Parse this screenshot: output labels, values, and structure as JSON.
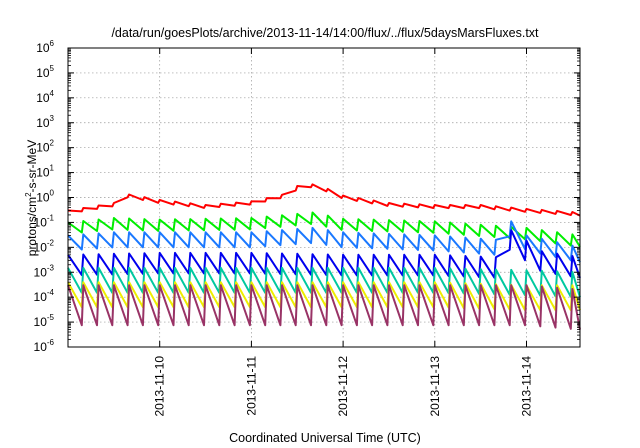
{
  "chart_data": {
    "type": "line",
    "title": "/data/run/goesPlots/archive/2013-11-14/14:00/flux/../flux/5daysMarsFluxes.txt",
    "xlabel": "Coordinated Universal Time (UTC)",
    "ylabel": {
      "base": "protons/cm",
      "sup": "2",
      "rest": "-s-sr-MeV"
    },
    "yscale": "log",
    "ylim": [
      1e-06,
      1000000.0
    ],
    "xlim": [
      "2013-11-09T00:00",
      "2013-11-14T14:00"
    ],
    "grid": true,
    "legend": "none",
    "y_ticks": [
      {
        "v": 1000000.0,
        "base": "10",
        "exp": "6"
      },
      {
        "v": 100000.0,
        "base": "10",
        "exp": "5"
      },
      {
        "v": 10000.0,
        "base": "10",
        "exp": "4"
      },
      {
        "v": 1000.0,
        "base": "10",
        "exp": "3"
      },
      {
        "v": 100.0,
        "base": "10",
        "exp": "2"
      },
      {
        "v": 10.0,
        "base": "10",
        "exp": "1"
      },
      {
        "v": 1.0,
        "base": "10",
        "exp": "0"
      },
      {
        "v": 0.1,
        "base": "10",
        "exp": "-1"
      },
      {
        "v": 0.01,
        "base": "10",
        "exp": "-2"
      },
      {
        "v": 0.001,
        "base": "10",
        "exp": "-3"
      },
      {
        "v": 0.0001,
        "base": "10",
        "exp": "-4"
      },
      {
        "v": 1e-05,
        "base": "10",
        "exp": "-5"
      },
      {
        "v": 1e-06,
        "base": "10",
        "exp": "-6"
      }
    ],
    "x_ticks": [
      {
        "v": "2013-11-10T00:00",
        "label": "2013-11-10"
      },
      {
        "v": "2013-11-11T00:00",
        "label": "2013-11-11"
      },
      {
        "v": "2013-11-12T00:00",
        "label": "2013-11-12"
      },
      {
        "v": "2013-11-13T00:00",
        "label": "2013-11-13"
      },
      {
        "v": "2013-11-14T00:00",
        "label": "2013-11-14"
      }
    ],
    "sawtooth_period_hours": 4,
    "series": [
      {
        "color": "#ff0000",
        "key_points": [
          [
            "2013-11-09T00:00",
            0.3
          ],
          [
            "2013-11-09T12:00",
            0.6
          ],
          [
            "2013-11-09T14:00",
            1.5
          ],
          [
            "2013-11-10T00:00",
            0.8
          ],
          [
            "2013-11-10T12:00",
            0.5
          ],
          [
            "2013-11-11T00:00",
            0.7
          ],
          [
            "2013-11-11T10:00",
            1.5
          ],
          [
            "2013-11-11T13:00",
            4.0
          ],
          [
            "2013-11-11T18:00",
            3.0
          ],
          [
            "2013-11-12T00:00",
            1.2
          ],
          [
            "2013-11-12T12:00",
            0.6
          ],
          [
            "2013-11-13T00:00",
            0.5
          ],
          [
            "2013-11-13T12:00",
            0.5
          ],
          [
            "2013-11-14T00:00",
            0.35
          ],
          [
            "2013-11-14T14:00",
            0.25
          ]
        ],
        "sawtooth_low_ratio": 0.75
      },
      {
        "color": "#00ee00",
        "key_points": [
          [
            "2013-11-09T00:00",
            0.1
          ],
          [
            "2013-11-09T12:00",
            0.15
          ],
          [
            "2013-11-10T00:00",
            0.13
          ],
          [
            "2013-11-11T00:00",
            0.15
          ],
          [
            "2013-11-11T16:00",
            0.25
          ],
          [
            "2013-11-12T00:00",
            0.14
          ],
          [
            "2013-11-13T00:00",
            0.11
          ],
          [
            "2013-11-14T00:00",
            0.06
          ],
          [
            "2013-11-14T14:00",
            0.03
          ]
        ],
        "sawtooth_low_ratio": 0.35
      },
      {
        "color": "#1a78ff",
        "key_points": [
          [
            "2013-11-09T00:00",
            0.03
          ],
          [
            "2013-11-09T12:00",
            0.04
          ],
          [
            "2013-11-10T00:00",
            0.04
          ],
          [
            "2013-11-11T00:00",
            0.04
          ],
          [
            "2013-11-11T16:00",
            0.06
          ],
          [
            "2013-11-12T00:00",
            0.04
          ],
          [
            "2013-11-13T00:00",
            0.03
          ],
          [
            "2013-11-13T16:00",
            0.02
          ],
          [
            "2013-11-13T17:00",
            0.12
          ],
          [
            "2013-11-13T20:00",
            0.11
          ],
          [
            "2013-11-14T00:00",
            0.03
          ],
          [
            "2013-11-14T14:00",
            0.01
          ]
        ],
        "sawtooth_low_ratio": 0.25
      },
      {
        "color": "#0000ee",
        "key_points": [
          [
            "2013-11-09T00:00",
            0.005
          ],
          [
            "2013-11-10T00:00",
            0.006
          ],
          [
            "2013-11-11T00:00",
            0.006
          ],
          [
            "2013-11-12T00:00",
            0.005
          ],
          [
            "2013-11-13T00:00",
            0.005
          ],
          [
            "2013-11-13T16:00",
            0.004
          ],
          [
            "2013-11-13T17:00",
            0.1
          ],
          [
            "2013-11-13T22:00",
            0.03
          ],
          [
            "2013-11-14T04:00",
            0.007
          ],
          [
            "2013-11-14T14:00",
            0.004
          ]
        ],
        "sawtooth_low_ratio": 0.15
      },
      {
        "color": "#00c8a0",
        "key_points": [
          [
            "2013-11-09T00:00",
            0.0015
          ],
          [
            "2013-11-10T00:00",
            0.0015
          ],
          [
            "2013-11-11T00:00",
            0.0015
          ],
          [
            "2013-11-12T00:00",
            0.0015
          ],
          [
            "2013-11-13T00:00",
            0.0015
          ],
          [
            "2013-11-14T00:00",
            0.0012
          ],
          [
            "2013-11-14T14:00",
            0.001
          ]
        ],
        "sawtooth_low_ratio": 0.1
      },
      {
        "color": "#eeee00",
        "key_points": [
          [
            "2013-11-09T00:00",
            0.0004
          ],
          [
            "2013-11-10T00:00",
            0.0004
          ],
          [
            "2013-11-11T00:00",
            0.0004
          ],
          [
            "2013-11-12T00:00",
            0.0004
          ],
          [
            "2013-11-13T00:00",
            0.0004
          ],
          [
            "2013-11-14T00:00",
            0.0003
          ],
          [
            "2013-11-14T14:00",
            0.0003
          ]
        ],
        "sawtooth_low_ratio": 0.1
      },
      {
        "color": "#993366",
        "key_points": [
          [
            "2013-11-09T00:00",
            0.0003
          ],
          [
            "2013-11-10T00:00",
            0.0003
          ],
          [
            "2013-11-11T00:00",
            0.0003
          ],
          [
            "2013-11-12T00:00",
            0.0003
          ],
          [
            "2013-11-13T00:00",
            0.0003
          ],
          [
            "2013-11-14T00:00",
            0.0003
          ],
          [
            "2013-11-14T14:00",
            0.0002
          ]
        ],
        "sawtooth_low_ratio": 0.025
      }
    ]
  }
}
